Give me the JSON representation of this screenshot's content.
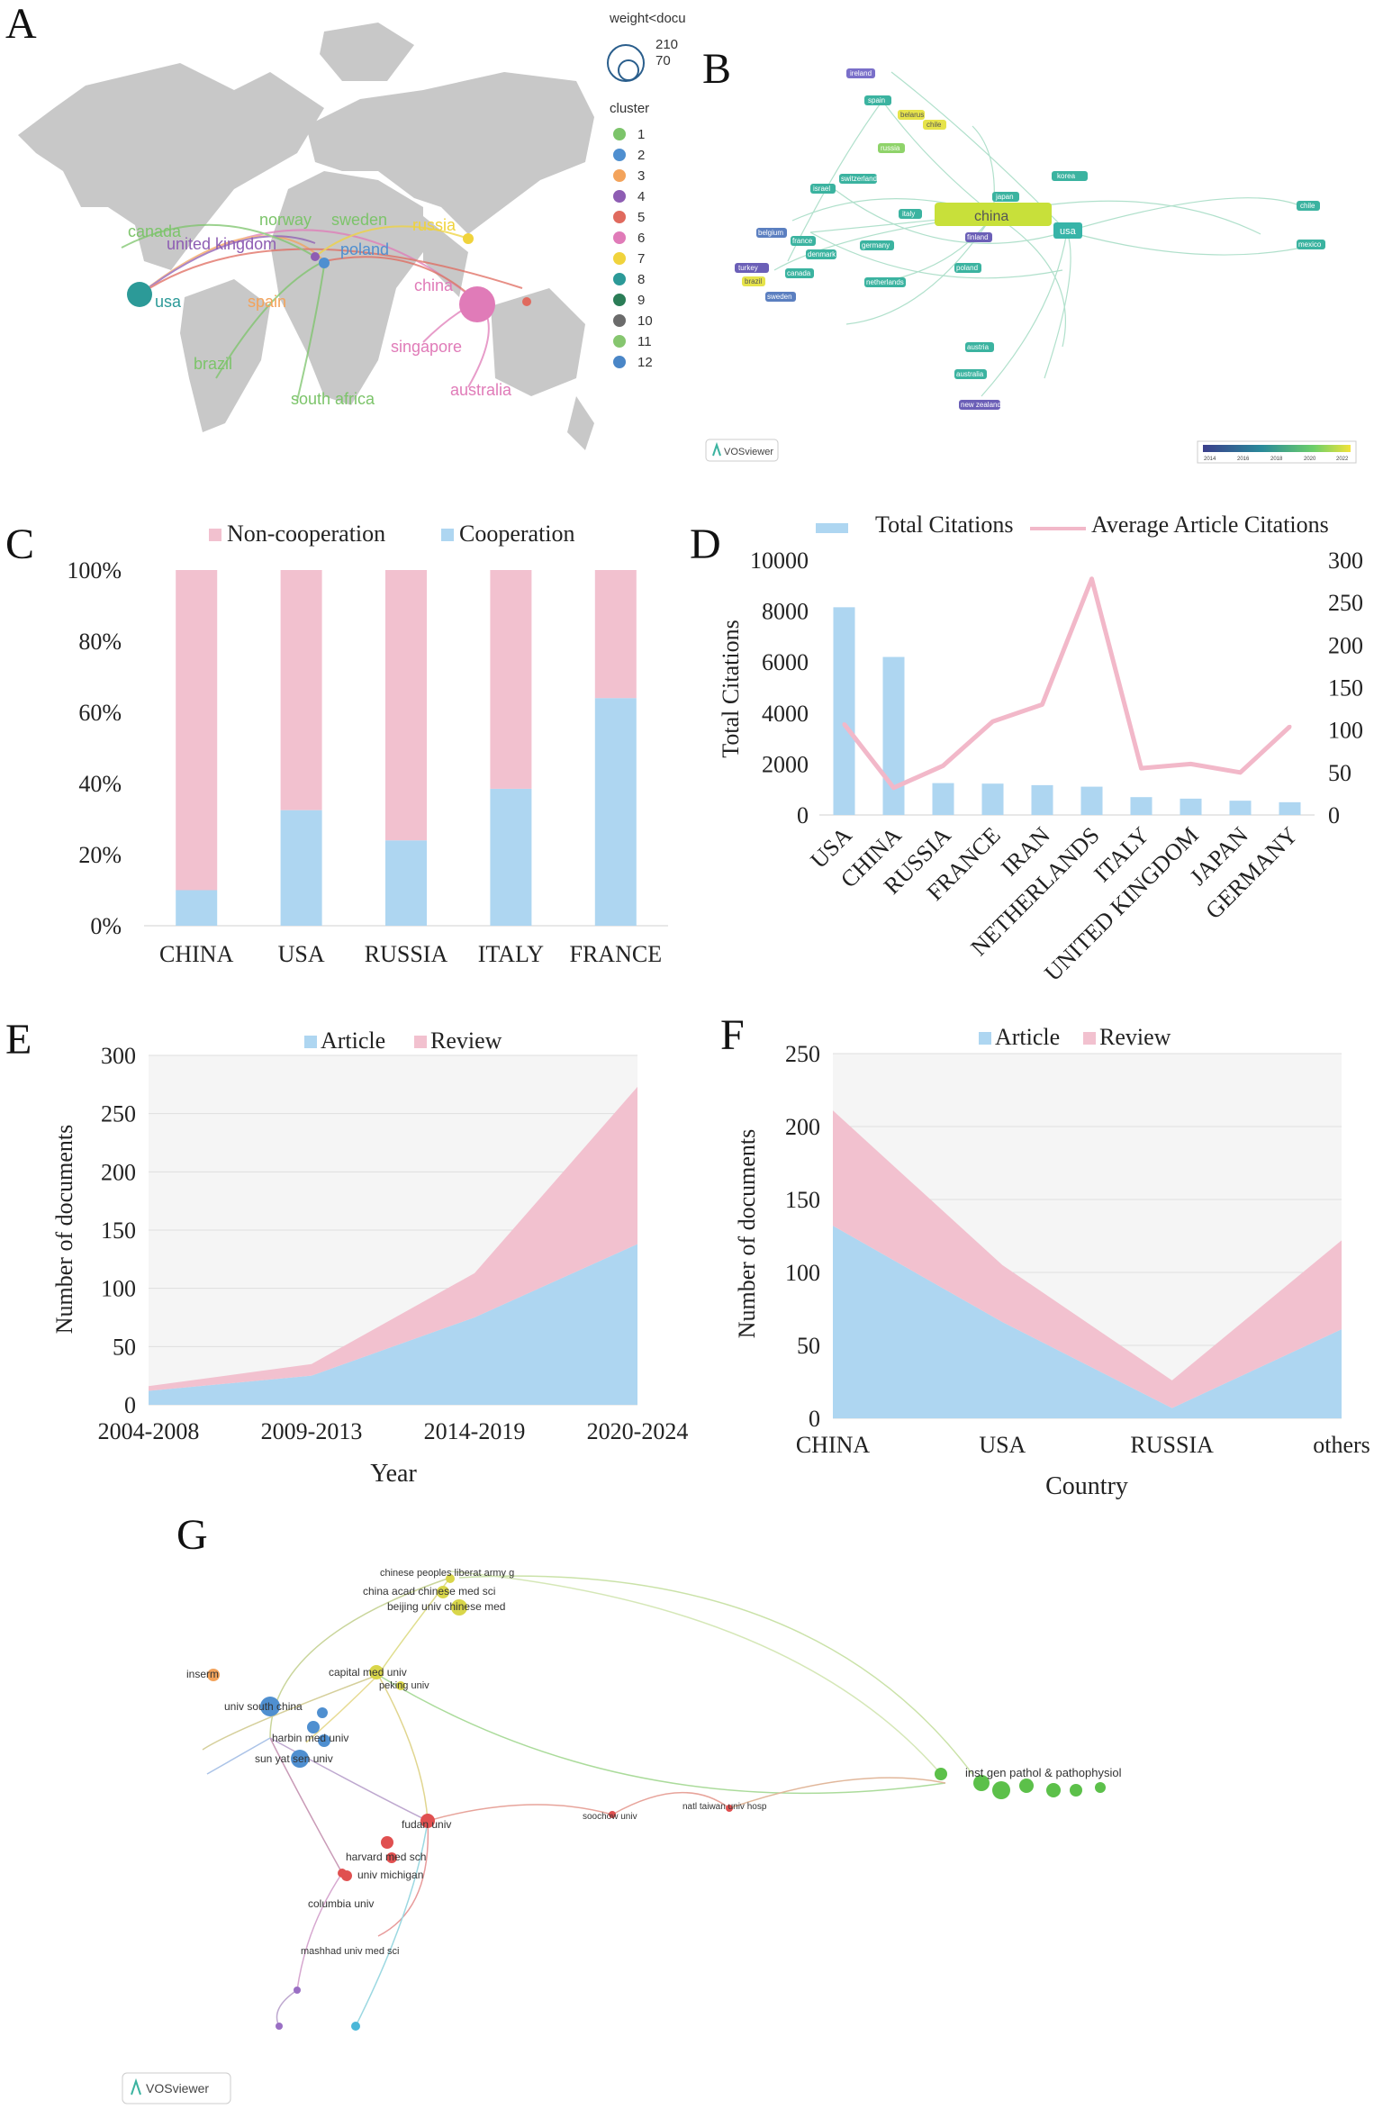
{
  "panel_labels": [
    "A",
    "B",
    "C",
    "D",
    "E",
    "F",
    "G"
  ],
  "map_a": {
    "legend_weight_title": "weight<docu",
    "legend_weight_values": [
      "210",
      "70"
    ],
    "legend_cluster_title": "cluster",
    "clusters": [
      {
        "id": "1",
        "color": "#7cc46a"
      },
      {
        "id": "2",
        "color": "#4f8fd0"
      },
      {
        "id": "3",
        "color": "#f3a35b"
      },
      {
        "id": "4",
        "color": "#8e5db3"
      },
      {
        "id": "5",
        "color": "#e06a5e"
      },
      {
        "id": "6",
        "color": "#e07bb8"
      },
      {
        "id": "7",
        "color": "#f0d33c"
      },
      {
        "id": "8",
        "color": "#2c9a98"
      },
      {
        "id": "9",
        "color": "#2b7d57"
      },
      {
        "id": "10",
        "color": "#6b6b6b"
      },
      {
        "id": "11",
        "color": "#86c66f"
      },
      {
        "id": "12",
        "color": "#4a86c7"
      }
    ],
    "countries": [
      {
        "name": "canada",
        "color": "#7cc46a"
      },
      {
        "name": "norway",
        "color": "#7cc46a"
      },
      {
        "name": "sweden",
        "color": "#7cc46a"
      },
      {
        "name": "united kingdom",
        "color": "#8e5db3"
      },
      {
        "name": "poland",
        "color": "#4f8fd0"
      },
      {
        "name": "russia",
        "color": "#f0d33c"
      },
      {
        "name": "usa",
        "color": "#2c9a98"
      },
      {
        "name": "spain",
        "color": "#f3a35b"
      },
      {
        "name": "china",
        "color": "#e07bb8"
      },
      {
        "name": "brazil",
        "color": "#7cc46a"
      },
      {
        "name": "singapore",
        "color": "#e07bb8"
      },
      {
        "name": "australia",
        "color": "#e07bb8"
      },
      {
        "name": "south africa",
        "color": "#7cc46a"
      }
    ]
  },
  "network_b": {
    "nodes": [
      {
        "label": "ireland",
        "color": "#7a6fc9"
      },
      {
        "label": "spain",
        "color": "#3bb3a0"
      },
      {
        "label": "belarus",
        "color": "#e6e34a"
      },
      {
        "label": "chile",
        "color": "#e6e34a"
      },
      {
        "label": "russia",
        "color": "#8fd36a"
      },
      {
        "label": "switzerland",
        "color": "#3bb3a0"
      },
      {
        "label": "israel",
        "color": "#3bb3a0"
      },
      {
        "label": "japan",
        "color": "#3bb3a0"
      },
      {
        "label": "korea",
        "color": "#3bb3a0"
      },
      {
        "label": "china",
        "color": "#c8e03a"
      },
      {
        "label": "usa",
        "color": "#37b4a8"
      },
      {
        "label": "italy",
        "color": "#3bb3a0"
      },
      {
        "label": "belgium",
        "color": "#5b7fc0"
      },
      {
        "label": "france",
        "color": "#3bb3a0"
      },
      {
        "label": "denmark",
        "color": "#3bb3a0"
      },
      {
        "label": "germany",
        "color": "#3bb3a0"
      },
      {
        "label": "finland",
        "color": "#6b5fb7"
      },
      {
        "label": "turkey",
        "color": "#6b5fb7"
      },
      {
        "label": "canada",
        "color": "#3bb3a0"
      },
      {
        "label": "netherlands",
        "color": "#3bb3a0"
      },
      {
        "label": "brazil",
        "color": "#e6e34a"
      },
      {
        "label": "sweden",
        "color": "#5b7fc0"
      },
      {
        "label": "poland",
        "color": "#3bb3a0"
      },
      {
        "label": "chile",
        "color": "#3bb3a0"
      },
      {
        "label": "austria",
        "color": "#3bb3a0"
      },
      {
        "label": "australia",
        "color": "#3bb3a0"
      },
      {
        "label": "new zealand",
        "color": "#6b5fb7"
      },
      {
        "label": "mexico",
        "color": "#3bb3a0"
      }
    ],
    "logo": "VOSviewer",
    "colorbar_ticks": [
      "2014",
      "2016",
      "2018",
      "2020",
      "2022"
    ]
  },
  "chart_c": {
    "type": "bar",
    "stacked": true,
    "percent": true,
    "title": "",
    "legend": [
      "Non-cooperation",
      "Cooperation"
    ],
    "categories": [
      "CHINA",
      "USA",
      "RUSSIA",
      "ITALY",
      "FRANCE"
    ],
    "series": [
      {
        "name": "Cooperation",
        "color": "#aed6f1",
        "values": [
          10,
          32.5,
          24,
          38.5,
          64
        ]
      },
      {
        "name": "Non-cooperation",
        "color": "#f2c1cf",
        "values": [
          90,
          67.5,
          76,
          61.5,
          36
        ]
      }
    ],
    "yticks": [
      "0%",
      "20%",
      "40%",
      "60%",
      "80%",
      "100%"
    ],
    "ylim": [
      0,
      100
    ]
  },
  "chart_d": {
    "type": "bar",
    "legend": [
      "Total Citations",
      "Average Article Citations"
    ],
    "categories": [
      "USA",
      "CHINA",
      "RUSSIA",
      "FRANCE",
      "IRAN",
      "NETHERLANDS",
      "ITALY",
      "UNITED KINGDOM",
      "JAPAN",
      "GERMANY"
    ],
    "series": [
      {
        "name": "Total Citations",
        "kind": "bar",
        "color": "#aed6f1",
        "values": [
          8150,
          6200,
          1250,
          1230,
          1170,
          1110,
          700,
          640,
          560,
          500
        ]
      },
      {
        "name": "Average Article Citations",
        "kind": "line",
        "axis": "right",
        "color": "#f2b8c9",
        "values": [
          107,
          32,
          58,
          110,
          130,
          278,
          55,
          60,
          50,
          104
        ]
      }
    ],
    "ylabel": "Total Citations",
    "ylim": [
      0,
      10000
    ],
    "yticks": [
      "0",
      "2000",
      "4000",
      "6000",
      "8000",
      "10000"
    ],
    "y2lim": [
      0,
      300
    ],
    "y2ticks": [
      "0",
      "50",
      "100",
      "150",
      "200",
      "250",
      "300"
    ]
  },
  "chart_e": {
    "type": "area",
    "stacked": true,
    "legend": [
      "Article",
      "Review"
    ],
    "categories": [
      "2004-2008",
      "2009-2013",
      "2014-2019",
      "2020-2024"
    ],
    "series": [
      {
        "name": "Article",
        "color": "#aed6f1",
        "values": [
          12,
          25,
          75,
          138
        ]
      },
      {
        "name": "Review",
        "color": "#f2c1cf",
        "values": [
          4,
          10,
          38,
          135
        ]
      }
    ],
    "xlabel": "Year",
    "ylabel": "Number of documents",
    "ylim": [
      0,
      300
    ],
    "yticks": [
      "0",
      "50",
      "100",
      "150",
      "200",
      "250",
      "300"
    ]
  },
  "chart_f": {
    "type": "area",
    "stacked": true,
    "legend": [
      "Article",
      "Review"
    ],
    "categories": [
      "CHINA",
      "USA",
      "RUSSIA",
      "others"
    ],
    "series": [
      {
        "name": "Article",
        "color": "#aed6f1",
        "values": [
          132,
          66,
          7,
          61
        ]
      },
      {
        "name": "Review",
        "color": "#f2c1cf",
        "values": [
          79,
          39,
          19,
          61
        ]
      }
    ],
    "xlabel": "Country",
    "ylabel": "Number of documents",
    "ylim": [
      0,
      250
    ],
    "yticks": [
      "0",
      "50",
      "100",
      "150",
      "200",
      "250"
    ]
  },
  "network_g": {
    "labels": [
      {
        "text": "chinese peoples liberat army g",
        "color": "#333"
      },
      {
        "text": "china acad chinese med sci",
        "color": "#333"
      },
      {
        "text": "beijing univ chinese med",
        "color": "#333"
      },
      {
        "text": "peking univ",
        "color": "#333"
      },
      {
        "text": "capital med univ",
        "color": "#333"
      },
      {
        "text": "inserm",
        "color": "#333"
      },
      {
        "text": "univ south china",
        "color": "#333"
      },
      {
        "text": "harbin med univ",
        "color": "#333"
      },
      {
        "text": "sun yat sen univ",
        "color": "#333"
      },
      {
        "text": "fudan univ",
        "color": "#333"
      },
      {
        "text": "harvard med sch",
        "color": "#333"
      },
      {
        "text": "univ michigan",
        "color": "#333"
      },
      {
        "text": "columbia univ",
        "color": "#333"
      },
      {
        "text": "mashhad univ med sci",
        "color": "#333"
      },
      {
        "text": "soochow univ",
        "color": "#333"
      },
      {
        "text": "natl taiwan univ hosp",
        "color": "#333"
      },
      {
        "text": "inst gen pathol & pathophysiol",
        "color": "#333"
      }
    ],
    "logo": "VOSviewer"
  }
}
